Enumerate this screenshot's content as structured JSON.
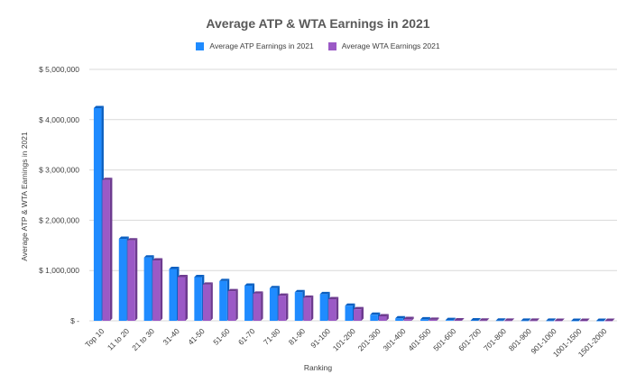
{
  "chart_data": {
    "type": "bar",
    "title": "Average ATP & WTA Earnings in 2021",
    "xlabel": "Ranking",
    "ylabel": "Average ATP & WTA Earnings in 2021",
    "categories": [
      "Top 10",
      "11 to 20",
      "21 to 30",
      "31-40",
      "41-50",
      "51-60",
      "61-70",
      "71-80",
      "81-90",
      "91-100",
      "101-200",
      "201-300",
      "301-400",
      "401-500",
      "501-600",
      "601-700",
      "701-800",
      "801-900",
      "901-1000",
      "1001-1500",
      "1501-2000"
    ],
    "series": [
      {
        "name": "Average ATP Earnings in 2021",
        "color": "#1f8bff",
        "values": [
          4230000,
          1630000,
          1260000,
          1030000,
          870000,
          790000,
          700000,
          650000,
          570000,
          530000,
          300000,
          120000,
          50000,
          30000,
          15000,
          8000,
          5000,
          3000,
          2000,
          1000,
          500
        ]
      },
      {
        "name": "Average WTA Earnings 2021",
        "color": "#9b59c6",
        "values": [
          2800000,
          1600000,
          1200000,
          870000,
          720000,
          590000,
          540000,
          500000,
          460000,
          430000,
          230000,
          90000,
          35000,
          20000,
          10000,
          5000,
          3000,
          2000,
          1000,
          500,
          300
        ]
      }
    ],
    "ylim": [
      0,
      5000000
    ],
    "yticks": [
      0,
      1000000,
      2000000,
      3000000,
      4000000,
      5000000
    ],
    "ytick_labels": [
      "$ -",
      "$ 1,000,000",
      "$ 2,000,000",
      "$ 3,000,000",
      "$ 4,000,000",
      "$ 5,000,000"
    ],
    "grid": true,
    "legend_position": "top"
  }
}
